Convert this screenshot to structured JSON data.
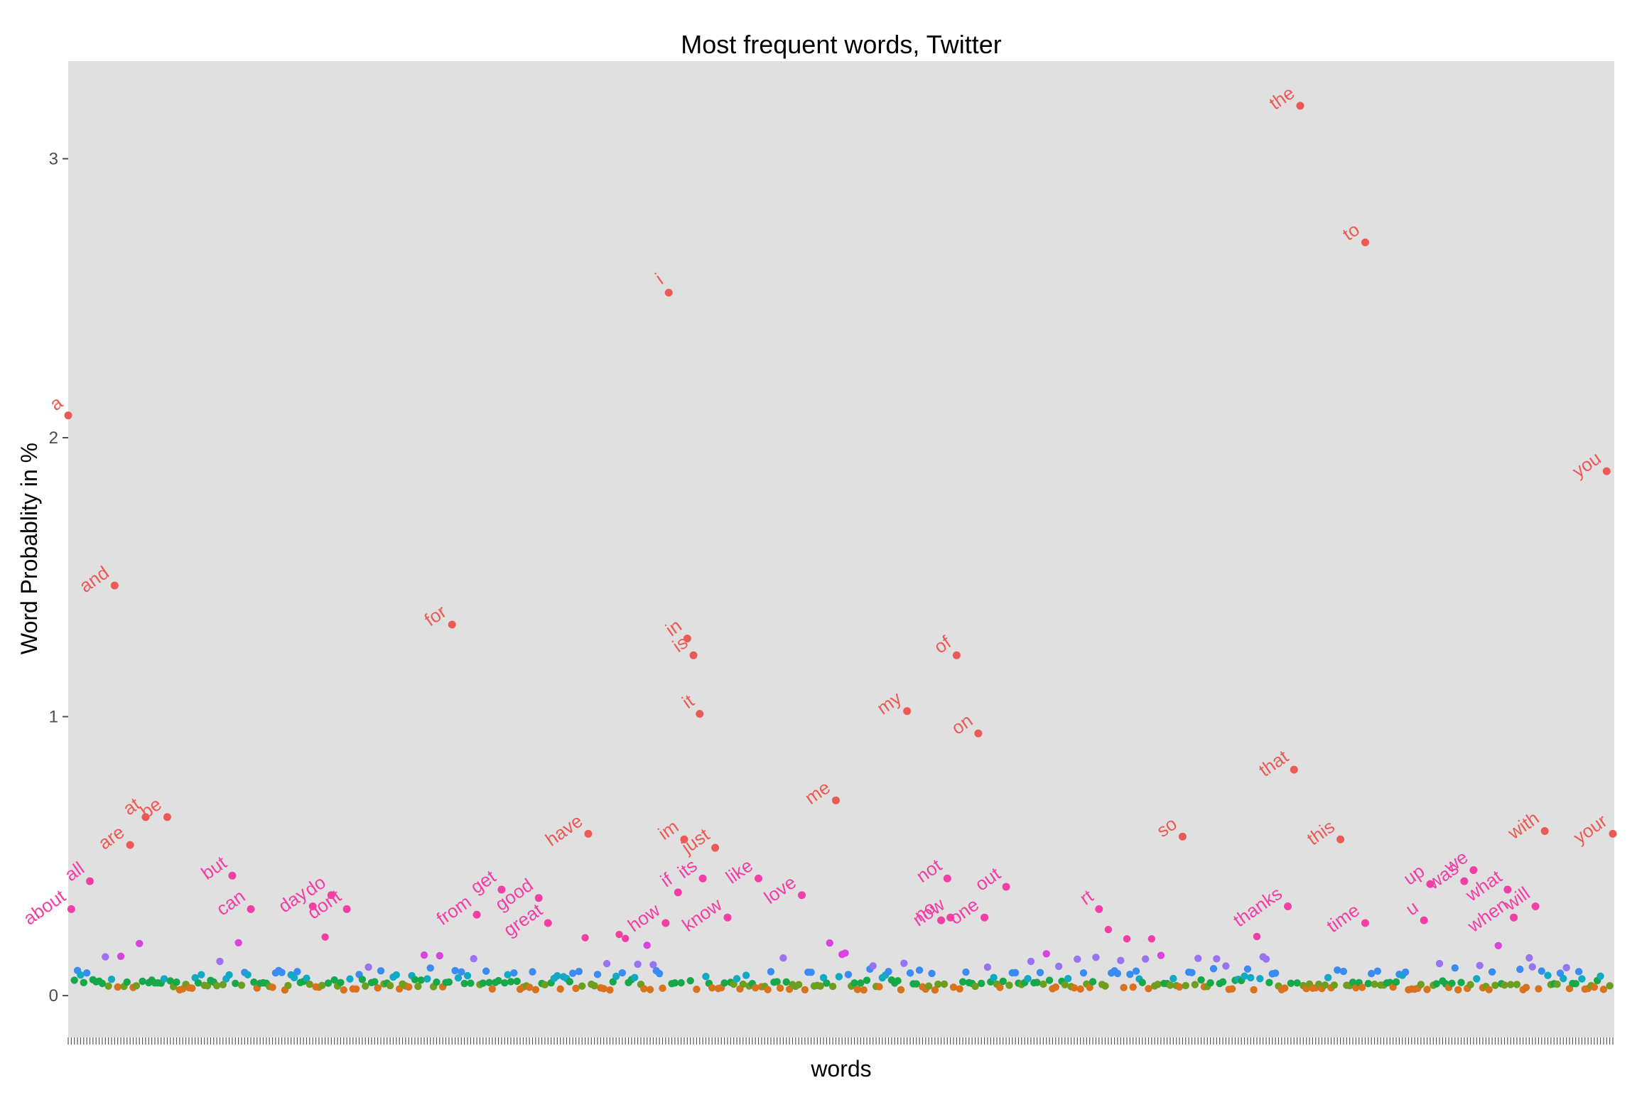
{
  "chart_data": {
    "type": "scatter",
    "title": "Most frequent words, Twitter",
    "xlabel": "words",
    "ylabel": "Word Probablity in %",
    "ylim": [
      -0.15,
      3.35
    ],
    "yticks": [
      0,
      1,
      2,
      3
    ],
    "x_count": 500,
    "grid": false,
    "legend": "none",
    "colors": {
      "panel_bg": "#e0e0e0",
      "label": "#f04a6e",
      "high": "#ec5a56",
      "pink": "#f23ea5",
      "magenta": "#d943e0",
      "violet": "#9a74f0",
      "blue": "#3a8cf4",
      "teal": "#12a9c4",
      "green": "#17a84a",
      "olive": "#6e9e1e",
      "orange": "#d8721c"
    },
    "labeled_points": [
      {
        "word": "a",
        "x": 0,
        "y": 2.08
      },
      {
        "word": "about",
        "x": 1,
        "y": 0.31
      },
      {
        "word": "all",
        "x": 7,
        "y": 0.41
      },
      {
        "word": "and",
        "x": 15,
        "y": 1.47
      },
      {
        "word": "are",
        "x": 20,
        "y": 0.54
      },
      {
        "word": "at",
        "x": 25,
        "y": 0.64
      },
      {
        "word": "be",
        "x": 32,
        "y": 0.64
      },
      {
        "word": "but",
        "x": 53,
        "y": 0.43
      },
      {
        "word": "can",
        "x": 59,
        "y": 0.31
      },
      {
        "word": "day",
        "x": 79,
        "y": 0.32
      },
      {
        "word": "do",
        "x": 85,
        "y": 0.36
      },
      {
        "word": "dont",
        "x": 90,
        "y": 0.31
      },
      {
        "word": "for",
        "x": 124,
        "y": 1.33
      },
      {
        "word": "from",
        "x": 132,
        "y": 0.29
      },
      {
        "word": "get",
        "x": 140,
        "y": 0.38
      },
      {
        "word": "good",
        "x": 152,
        "y": 0.35
      },
      {
        "word": "great",
        "x": 155,
        "y": 0.26
      },
      {
        "word": "have",
        "x": 168,
        "y": 0.58
      },
      {
        "word": "how",
        "x": 193,
        "y": 0.26
      },
      {
        "word": "i",
        "x": 194,
        "y": 2.52
      },
      {
        "word": "if",
        "x": 197,
        "y": 0.37
      },
      {
        "word": "im",
        "x": 199,
        "y": 0.56
      },
      {
        "word": "in",
        "x": 200,
        "y": 1.28
      },
      {
        "word": "is",
        "x": 202,
        "y": 1.22
      },
      {
        "word": "it",
        "x": 204,
        "y": 1.01
      },
      {
        "word": "its",
        "x": 205,
        "y": 0.42
      },
      {
        "word": "just",
        "x": 209,
        "y": 0.53
      },
      {
        "word": "know",
        "x": 213,
        "y": 0.28
      },
      {
        "word": "like",
        "x": 223,
        "y": 0.42
      },
      {
        "word": "love",
        "x": 237,
        "y": 0.36
      },
      {
        "word": "me",
        "x": 248,
        "y": 0.7
      },
      {
        "word": "my",
        "x": 271,
        "y": 1.02
      },
      {
        "word": "no",
        "x": 282,
        "y": 0.27
      },
      {
        "word": "not",
        "x": 284,
        "y": 0.42
      },
      {
        "word": "now",
        "x": 285,
        "y": 0.28
      },
      {
        "word": "of",
        "x": 287,
        "y": 1.22
      },
      {
        "word": "on",
        "x": 294,
        "y": 0.94
      },
      {
        "word": "one",
        "x": 296,
        "y": 0.28
      },
      {
        "word": "out",
        "x": 303,
        "y": 0.39
      },
      {
        "word": "rt",
        "x": 333,
        "y": 0.31
      },
      {
        "word": "so",
        "x": 360,
        "y": 0.57
      },
      {
        "word": "thanks",
        "x": 394,
        "y": 0.32
      },
      {
        "word": "that",
        "x": 396,
        "y": 0.81
      },
      {
        "word": "the",
        "x": 398,
        "y": 3.19
      },
      {
        "word": "this",
        "x": 411,
        "y": 0.56
      },
      {
        "word": "time",
        "x": 419,
        "y": 0.26
      },
      {
        "word": "to",
        "x": 419,
        "y": 2.7
      },
      {
        "word": "u",
        "x": 438,
        "y": 0.27
      },
      {
        "word": "up",
        "x": 440,
        "y": 0.4
      },
      {
        "word": "was",
        "x": 451,
        "y": 0.41
      },
      {
        "word": "we",
        "x": 454,
        "y": 0.45
      },
      {
        "word": "what",
        "x": 465,
        "y": 0.38
      },
      {
        "word": "when",
        "x": 467,
        "y": 0.28
      },
      {
        "word": "will",
        "x": 474,
        "y": 0.32
      },
      {
        "word": "with",
        "x": 477,
        "y": 0.59
      },
      {
        "word": "you",
        "x": 497,
        "y": 1.88
      },
      {
        "word": "your",
        "x": 499,
        "y": 0.58
      }
    ]
  }
}
